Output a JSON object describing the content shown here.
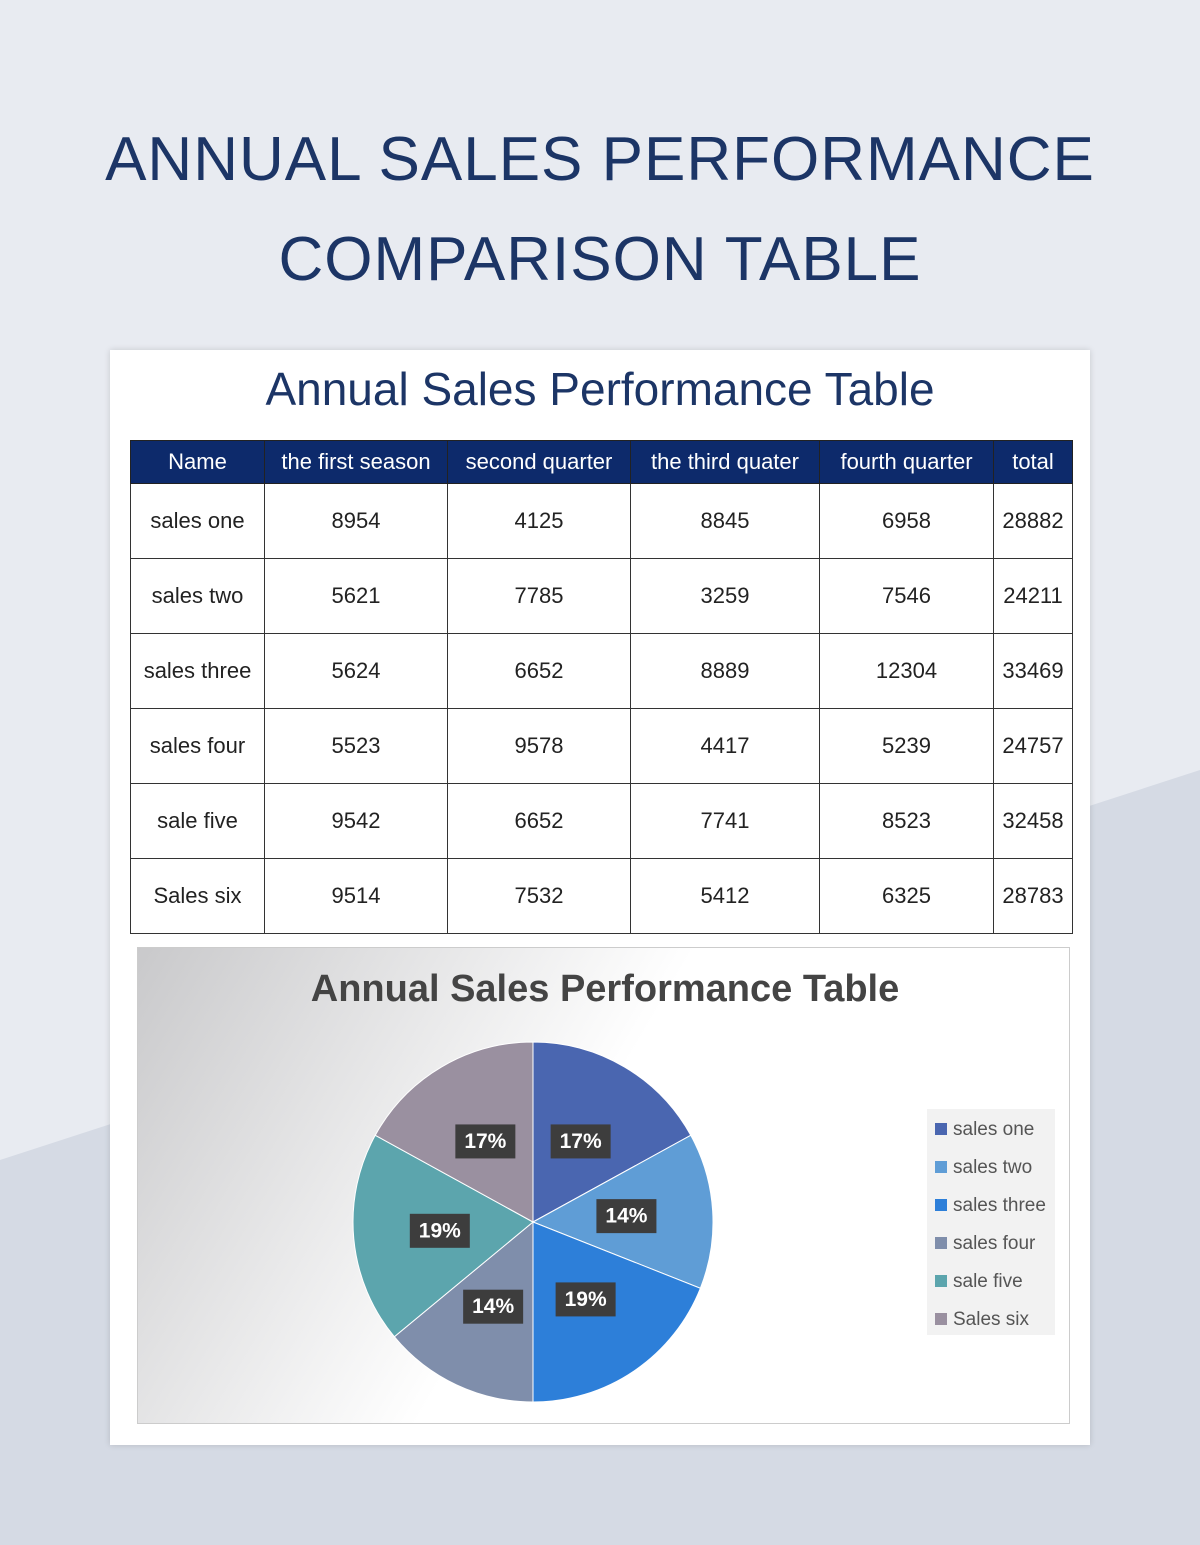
{
  "header": {
    "title": "ANNUAL SALES PERFORMANCE COMPARISON TABLE"
  },
  "table": {
    "title": "Annual Sales Performance Table",
    "headers": [
      "Name",
      "the first season",
      "second quarter",
      "the third quater",
      "fourth quarter",
      "total"
    ],
    "rows": [
      [
        "sales one",
        8954,
        4125,
        8845,
        6958,
        28882
      ],
      [
        "sales two",
        5621,
        7785,
        3259,
        7546,
        24211
      ],
      [
        "sales three",
        5624,
        6652,
        8889,
        12304,
        33469
      ],
      [
        "sales four",
        5523,
        9578,
        4417,
        5239,
        24757
      ],
      [
        "sale five",
        9542,
        6652,
        7741,
        8523,
        32458
      ],
      [
        "Sales six",
        9514,
        7532,
        5412,
        6325,
        28783
      ]
    ]
  },
  "chart_data": {
    "type": "pie",
    "title": "Annual Sales Performance Table",
    "categories": [
      "sales one",
      "sales two",
      "sales three",
      "sales four",
      "sale five",
      "Sales six"
    ],
    "values": [
      17,
      14,
      19,
      14,
      19,
      17
    ],
    "value_labels": [
      "17%",
      "14%",
      "19%",
      "14%",
      "19%",
      "17%"
    ],
    "colors": [
      "#4a66b0",
      "#5f9dd6",
      "#2d7fd9",
      "#7f8eab",
      "#5ca5ad",
      "#9a90a0"
    ],
    "legend": "right"
  }
}
